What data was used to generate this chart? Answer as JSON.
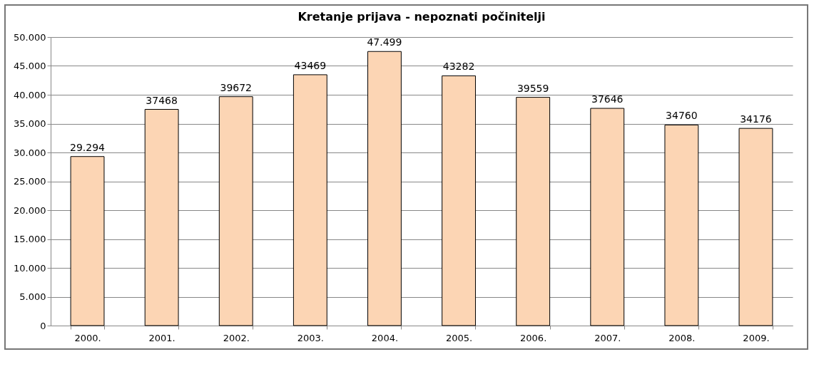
{
  "chart_data": {
    "type": "bar",
    "title": "Kretanje prijava - nepoznati počinitelji",
    "categories": [
      "2000.",
      "2001.",
      "2002.",
      "2003.",
      "2004.",
      "2005.",
      "2006.",
      "2007.",
      "2008.",
      "2009."
    ],
    "values": [
      29294,
      37468,
      39672,
      43469,
      47499,
      43282,
      39559,
      37646,
      34760,
      34176
    ],
    "value_labels": [
      "29.294",
      "37468",
      "39672",
      "43469",
      "47.499",
      "43282",
      "39559",
      "37646",
      "34760",
      "34176"
    ],
    "color": "#fcd5b4",
    "ylim": [
      0,
      50000
    ],
    "yticks": [
      0,
      {
        "value": 5000,
        "label": "5.000"
      },
      {
        "value": 10000,
        "label": "10.000"
      },
      {
        "value": 15000,
        "label": "15.000"
      },
      {
        "value": 20000,
        "label": "20.000"
      },
      {
        "value": 25000,
        "label": "25.000"
      },
      {
        "value": 30000,
        "label": "30.000"
      },
      {
        "value": 35000,
        "label": "35.000"
      },
      {
        "value": 40000,
        "label": "40.000"
      },
      {
        "value": 45000,
        "label": "45.000"
      },
      {
        "value": 50000,
        "label": "50.000"
      }
    ],
    "grid": "y"
  }
}
